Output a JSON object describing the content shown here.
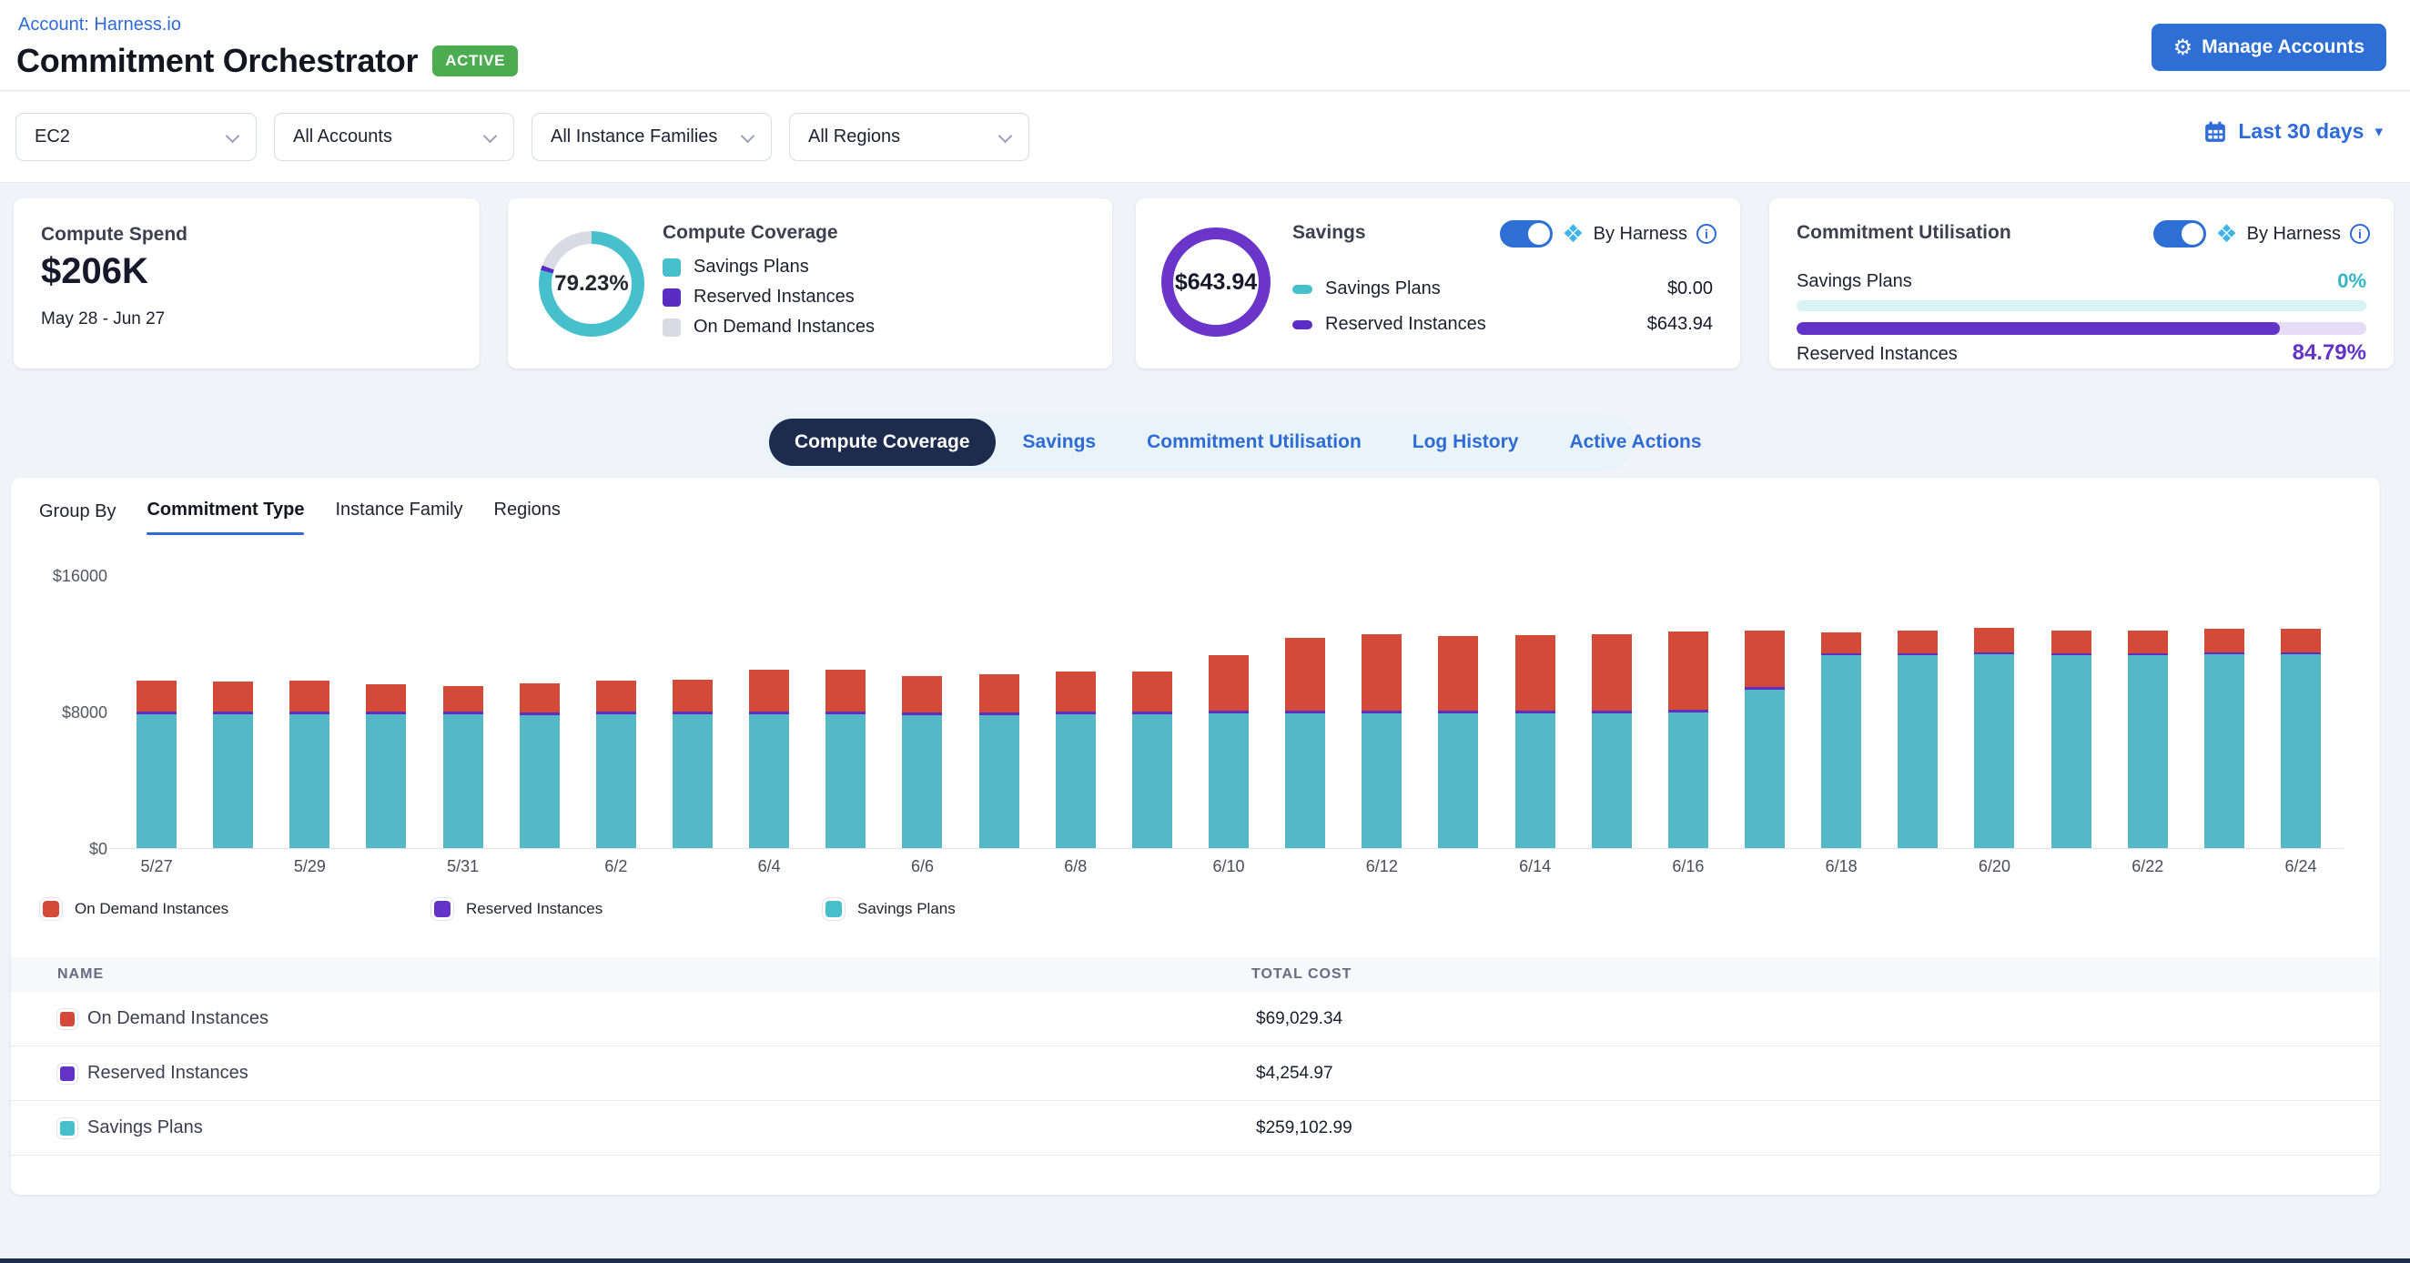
{
  "header": {
    "breadcrumb": "Account: Harness.io",
    "title": "Commitment Orchestrator",
    "status_badge": "ACTIVE",
    "manage_accounts_label": "Manage Accounts"
  },
  "filters": {
    "selects": [
      {
        "value": "EC2"
      },
      {
        "value": "All Accounts"
      },
      {
        "value": "All Instance Families"
      },
      {
        "value": "All Regions"
      }
    ],
    "date_range": "Last 30 days"
  },
  "cards": {
    "compute_spend": {
      "title": "Compute Spend",
      "value": "$206K",
      "period": "May 28 - Jun 27"
    },
    "compute_coverage": {
      "title": "Compute Coverage",
      "percent": "79.23%",
      "donut": {
        "savings_plans": 79.23,
        "reserved_instances": 1.5,
        "on_demand": 19.27
      },
      "legend": [
        {
          "label": "Savings Plans"
        },
        {
          "label": "Reserved Instances"
        },
        {
          "label": "On Demand Instances"
        }
      ]
    },
    "savings": {
      "title": "Savings",
      "total": "$643.94",
      "by_harness": "By Harness",
      "rows": [
        {
          "label": "Savings Plans",
          "value": "$0.00"
        },
        {
          "label": "Reserved Instances",
          "value": "$643.94"
        }
      ]
    },
    "commitment_utilisation": {
      "title": "Commitment Utilisation",
      "by_harness": "By Harness",
      "rows": [
        {
          "label": "Savings Plans",
          "percent": "0%",
          "fill": 0
        },
        {
          "label": "Reserved Instances",
          "percent": "84.79%",
          "fill": 84.79
        }
      ]
    }
  },
  "tabs": {
    "items": [
      {
        "label": "Compute Coverage",
        "active": true
      },
      {
        "label": "Savings",
        "active": false
      },
      {
        "label": "Commitment Utilisation",
        "active": false
      },
      {
        "label": "Log History",
        "active": false
      },
      {
        "label": "Active Actions",
        "active": false
      }
    ]
  },
  "group_by": {
    "label": "Group By",
    "items": [
      {
        "label": "Commitment Type",
        "active": true
      },
      {
        "label": "Instance Family",
        "active": false
      },
      {
        "label": "Regions",
        "active": false
      }
    ]
  },
  "chart_data": {
    "type": "bar",
    "stacked": true,
    "x": [
      "5/27",
      "5/28",
      "5/29",
      "5/30",
      "5/31",
      "6/1",
      "6/2",
      "6/3",
      "6/4",
      "6/5",
      "6/6",
      "6/7",
      "6/8",
      "6/9",
      "6/10",
      "6/11",
      "6/12",
      "6/13",
      "6/14",
      "6/15",
      "6/16",
      "6/17",
      "6/18",
      "6/19",
      "6/20",
      "6/21",
      "6/22",
      "6/23",
      "6/24"
    ],
    "x_label_every": 2,
    "series": [
      {
        "name": "Savings Plans",
        "color": "#55b8c7",
        "values": [
          7850,
          7850,
          7850,
          7850,
          7850,
          7800,
          7850,
          7850,
          7850,
          7850,
          7800,
          7800,
          7850,
          7850,
          7900,
          7900,
          7900,
          7900,
          7900,
          7900,
          7950,
          9300,
          11300,
          11300,
          11350,
          11300,
          11300,
          11350,
          11350
        ]
      },
      {
        "name": "Reserved Instances",
        "color": "#5f2fc1",
        "values": [
          140,
          140,
          140,
          140,
          140,
          140,
          140,
          140,
          140,
          140,
          140,
          140,
          140,
          140,
          140,
          140,
          140,
          140,
          140,
          140,
          140,
          140,
          140,
          140,
          140,
          140,
          140,
          140,
          140
        ]
      },
      {
        "name": "On Demand Instances",
        "color": "#d44a38",
        "values": [
          1830,
          1780,
          1830,
          1610,
          1500,
          1720,
          1830,
          1890,
          2490,
          2490,
          2160,
          2270,
          2380,
          2380,
          3270,
          4260,
          4480,
          4370,
          4430,
          4480,
          4600,
          3300,
          1190,
          1310,
          1420,
          1310,
          1310,
          1370,
          1370
        ]
      }
    ],
    "ylim": [
      0,
      16000
    ],
    "y_ticks": [
      "$0",
      "$8000",
      "$16000"
    ],
    "grid": false,
    "legend_position": "bottom"
  },
  "chart_legend": [
    {
      "label": "On Demand Instances",
      "color": "#d44a38"
    },
    {
      "label": "Reserved Instances",
      "color": "#6233c6"
    },
    {
      "label": "Savings Plans",
      "color": "#47c0cd"
    }
  ],
  "table": {
    "columns": [
      "NAME",
      "TOTAL COST"
    ],
    "rows": [
      {
        "name": "On Demand Instances",
        "color": "#d44a38",
        "total_cost": "$69,029.34"
      },
      {
        "name": "Reserved Instances",
        "color": "#6233c6",
        "total_cost": "$4,254.97"
      },
      {
        "name": "Savings Plans",
        "color": "#47c0cd",
        "total_cost": "$259,102.99"
      }
    ]
  },
  "colors": {
    "teal": "#47c0cd",
    "purple": "#5b2cc4",
    "donut_gray": "#d9dbe4",
    "red": "#d44a38",
    "blue": "#2e6bd8",
    "navy": "#1d2b4e",
    "green": "#4bad4f"
  }
}
